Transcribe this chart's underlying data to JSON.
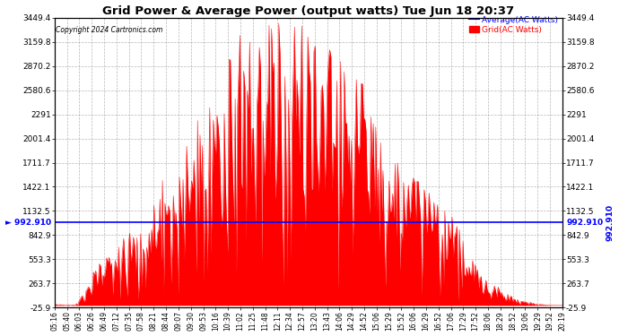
{
  "title": "Grid Power & Average Power (output watts) Tue Jun 18 20:37",
  "copyright": "Copyright 2024 Cartronics.com",
  "legend_avg": "Average(AC Watts)",
  "legend_grid": "Grid(AC Watts)",
  "average_value": 992.91,
  "ymin": -25.9,
  "ymax": 3449.4,
  "yticks": [
    -25.9,
    263.7,
    553.3,
    842.9,
    1132.5,
    1422.1,
    1711.7,
    2001.4,
    2291.0,
    2580.6,
    2870.2,
    3159.8,
    3449.4
  ],
  "xtick_labels": [
    "05:16",
    "05:40",
    "06:03",
    "06:26",
    "06:49",
    "07:12",
    "07:35",
    "07:58",
    "08:21",
    "08:44",
    "09:07",
    "09:30",
    "09:53",
    "10:16",
    "10:39",
    "11:02",
    "11:25",
    "11:48",
    "12:11",
    "12:34",
    "12:57",
    "13:20",
    "13:43",
    "14:06",
    "14:29",
    "14:52",
    "15:06",
    "15:29",
    "15:52",
    "16:06",
    "16:29",
    "16:52",
    "17:06",
    "17:29",
    "17:52",
    "18:06",
    "18:29",
    "18:52",
    "19:06",
    "19:29",
    "19:52",
    "20:19"
  ],
  "background_color": "#ffffff",
  "grid_color": "#888888",
  "fill_color": "#ff0000",
  "line_color": "#ff0000",
  "avg_line_color": "#0000ff",
  "title_color": "#000000",
  "avg_label_color": "#0000cd",
  "grid_label_color": "#ff0000"
}
